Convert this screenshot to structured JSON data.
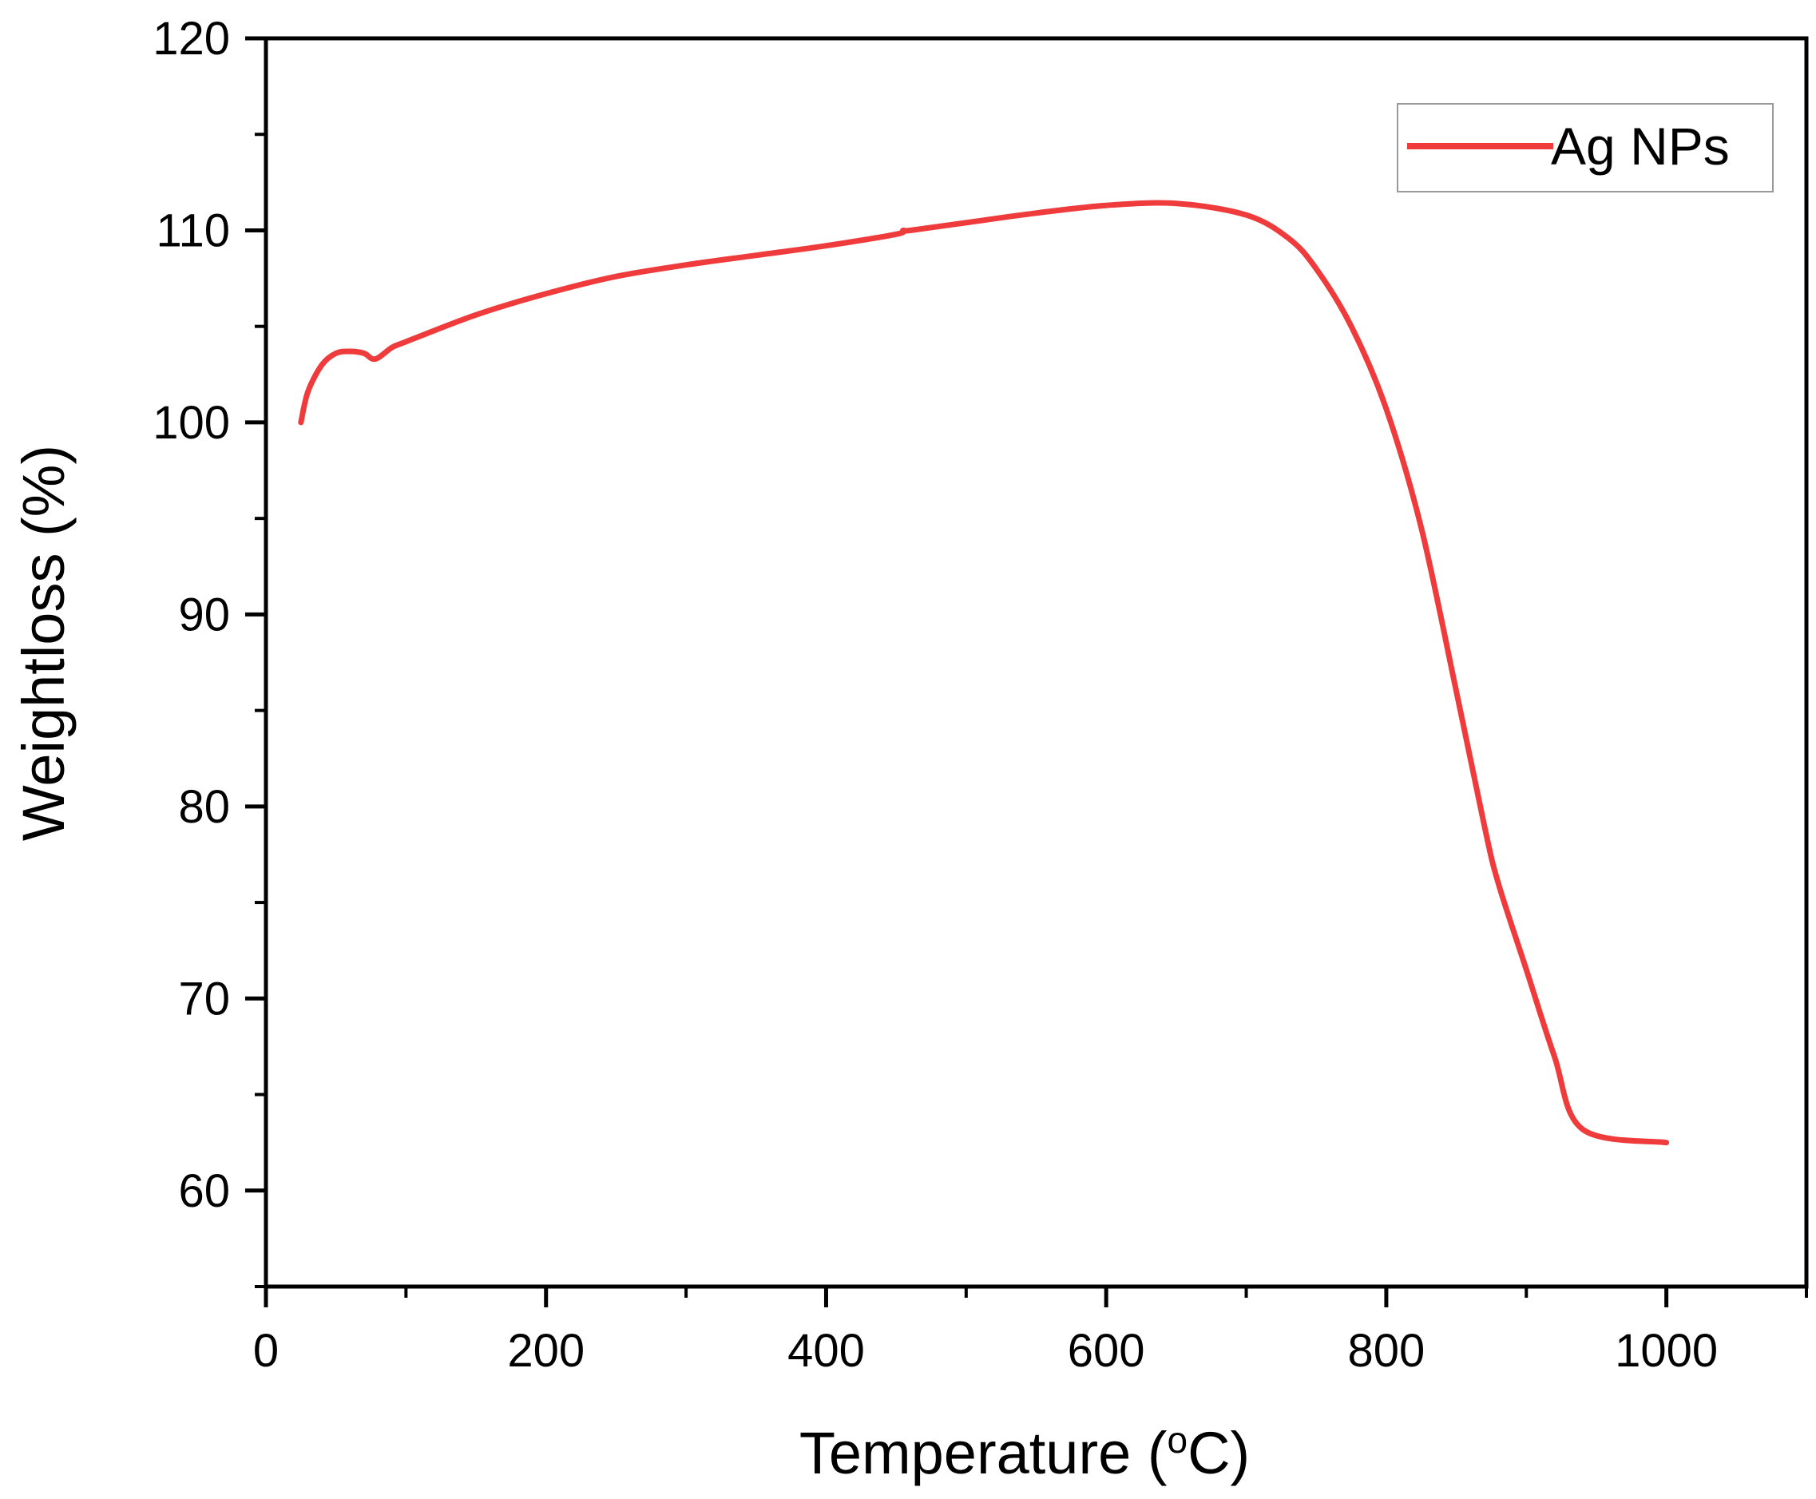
{
  "chart_data": {
    "type": "line",
    "xlabel": "Temperature (",
    "xlabel_sup": "o",
    "xlabel_end": "C)",
    "ylabel": "Weightloss (%)",
    "xlim": [
      0,
      1100
    ],
    "ylim": [
      55,
      120
    ],
    "x_ticks": [
      0,
      200,
      400,
      600,
      800,
      1000
    ],
    "x_minor_ticks": [
      100,
      300,
      500,
      700,
      900,
      1100
    ],
    "y_ticks": [
      60,
      70,
      80,
      90,
      100,
      110,
      120
    ],
    "y_minor_ticks": [
      55,
      65,
      75,
      85,
      95,
      105,
      115
    ],
    "grid": false,
    "legend_position": "top-right",
    "series": [
      {
        "name": "Ag NPs",
        "color": "#ef3b3c",
        "x": [
          25,
          30,
          40,
          50,
          60,
          70,
          78,
          90,
          100,
          150,
          200,
          250,
          300,
          350,
          400,
          450,
          455,
          460,
          500,
          550,
          600,
          650,
          700,
          730,
          750,
          775,
          800,
          825,
          850,
          870,
          880,
          900,
          920,
          940,
          1000
        ],
        "y": [
          100.0,
          101.6,
          103.0,
          103.6,
          103.7,
          103.6,
          103.3,
          103.9,
          104.2,
          105.6,
          106.7,
          107.6,
          108.2,
          108.7,
          109.2,
          109.8,
          110.0,
          110.0,
          110.4,
          110.9,
          111.3,
          111.4,
          110.8,
          109.6,
          108.0,
          105.0,
          100.7,
          94.5,
          86.0,
          79.0,
          76.0,
          71.5,
          67.0,
          63.2,
          62.5
        ]
      }
    ]
  }
}
